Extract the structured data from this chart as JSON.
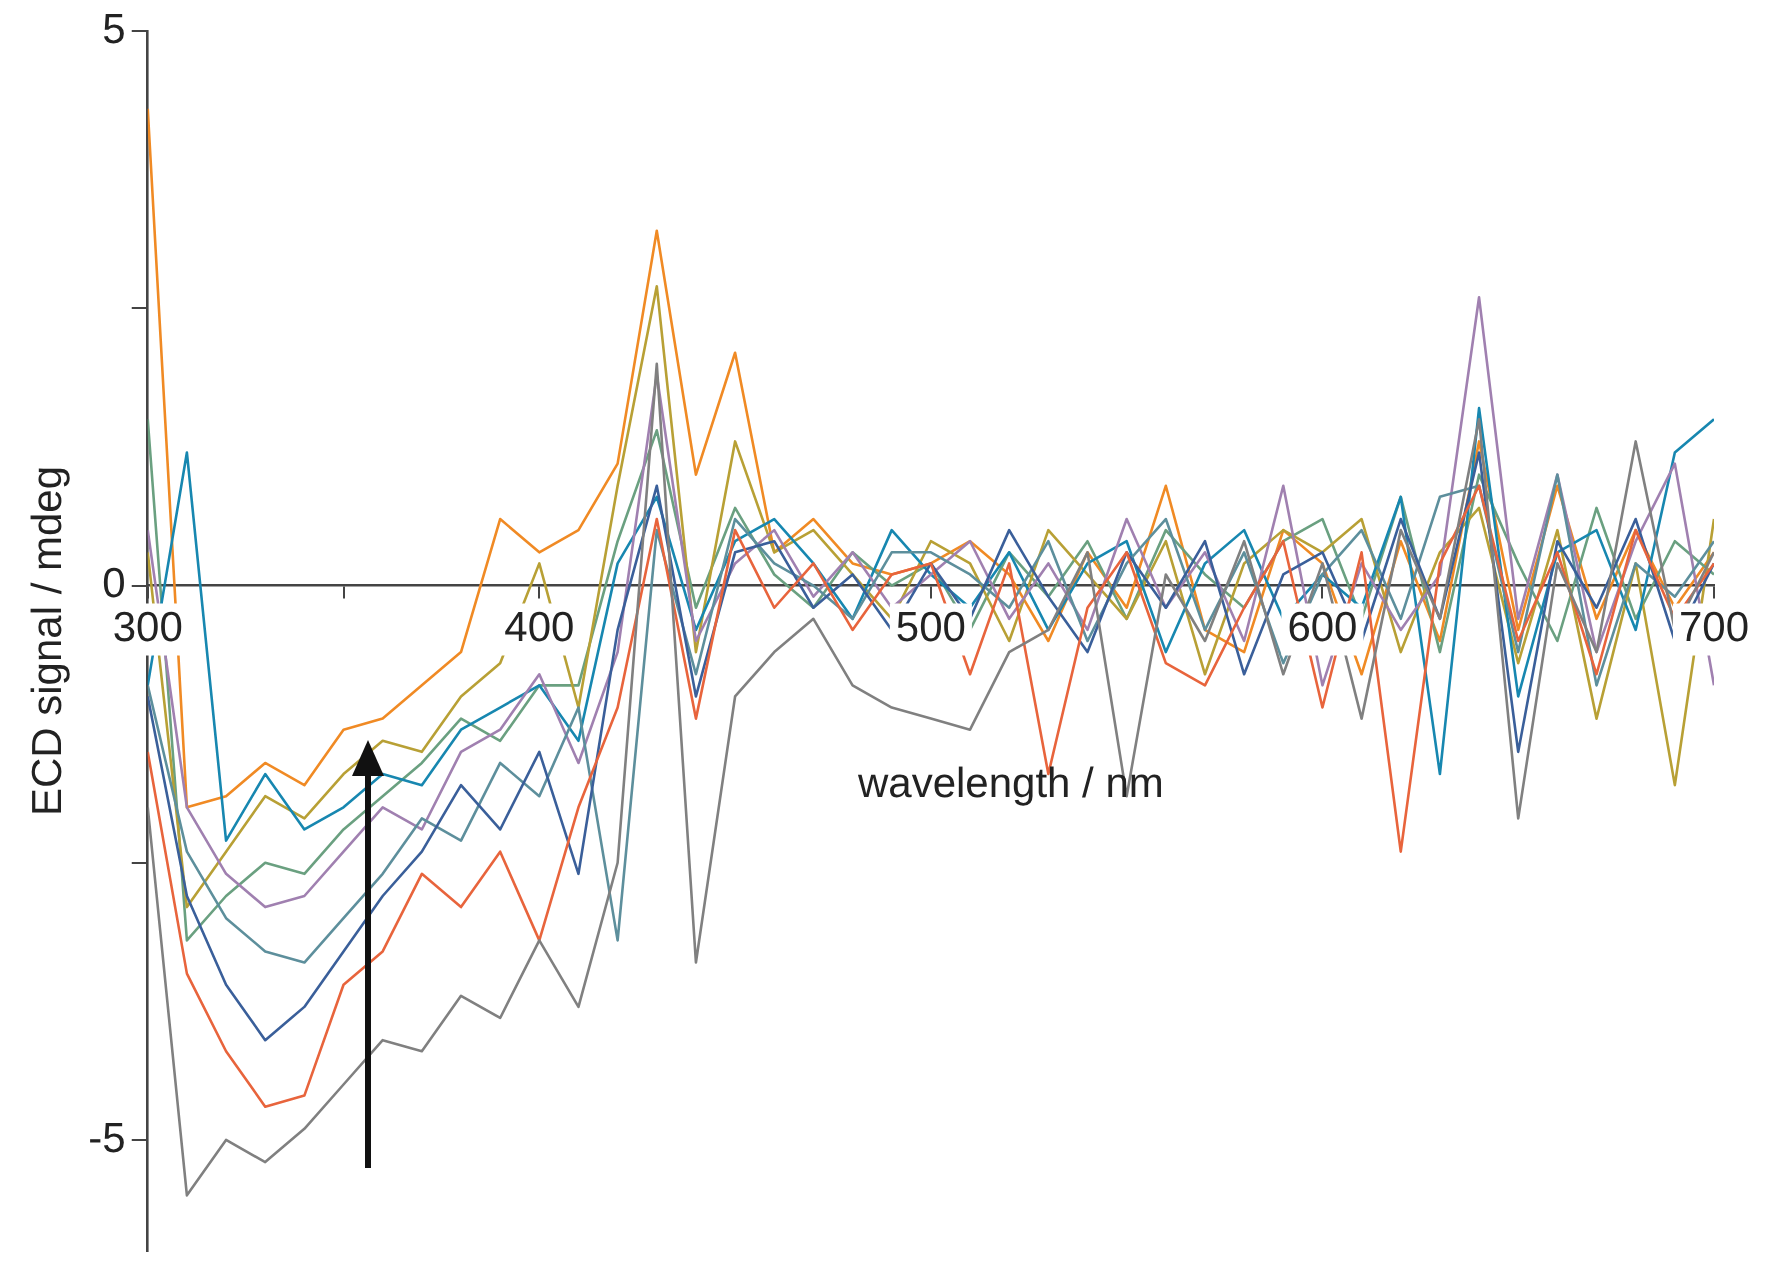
{
  "chart_data": {
    "type": "line",
    "xlabel": "wavelength / nm",
    "ylabel": "ECD signal / mdeg",
    "marker": "none",
    "line_style": "solid",
    "grid": false,
    "legend": false,
    "xlim": [
      300,
      700
    ],
    "xticks": [
      300,
      {
        "value": 350,
        "label": null
      },
      400,
      500,
      600,
      700
    ],
    "ylim": [
      -6,
      5
    ],
    "yticks": [
      -5,
      {
        "value": -2.5,
        "label": null
      },
      0,
      {
        "value": 2.5,
        "label": null
      },
      5
    ],
    "x": [
      300,
      310,
      320,
      330,
      340,
      350,
      360,
      370,
      380,
      390,
      400,
      410,
      420,
      430,
      440,
      450,
      460,
      470,
      480,
      490,
      500,
      510,
      520,
      530,
      540,
      550,
      560,
      570,
      580,
      590,
      600,
      610,
      620,
      630,
      640,
      650,
      660,
      670,
      680,
      690,
      700
    ],
    "series": [
      {
        "color": "#808080",
        "values": [
          -2.0,
          -5.5,
          -5.0,
          -5.2,
          -4.9,
          -4.5,
          -4.1,
          -4.2,
          -3.7,
          -3.9,
          -3.2,
          -3.8,
          -2.5,
          2.0,
          -3.4,
          -1.0,
          -0.6,
          -0.3,
          -0.9,
          -1.1,
          -1.2,
          -1.3,
          -0.6,
          -0.4,
          0.3,
          -1.9,
          0.1,
          -0.5,
          0.4,
          -0.8,
          0.2,
          -1.2,
          0.5,
          -0.3,
          1.5,
          -2.1,
          0.2,
          -0.6,
          1.3,
          -0.4,
          0.3
        ]
      },
      {
        "color": "#e8643c",
        "values": [
          -1.5,
          -3.5,
          -4.2,
          -4.7,
          -4.6,
          -3.6,
          -3.3,
          -2.6,
          -2.9,
          -2.4,
          -3.2,
          -2.0,
          -1.1,
          0.6,
          -1.2,
          0.5,
          -0.2,
          0.2,
          -0.4,
          0.1,
          0.2,
          -0.8,
          0.2,
          -1.7,
          -0.2,
          0.3,
          -0.7,
          -0.9,
          -0.2,
          0.4,
          -1.1,
          0.3,
          -2.4,
          0.2,
          0.9,
          -0.5,
          0.3,
          -0.8,
          0.5,
          -0.3,
          0.2
        ]
      },
      {
        "color": "#3a5f9a",
        "values": [
          -1.0,
          -2.8,
          -3.6,
          -4.1,
          -3.8,
          -3.3,
          -2.8,
          -2.4,
          -1.8,
          -2.2,
          -1.5,
          -2.6,
          -0.4,
          0.9,
          -1.0,
          0.3,
          0.4,
          -0.2,
          0.1,
          -0.4,
          0.2,
          -0.3,
          0.5,
          -0.1,
          -0.6,
          0.3,
          -0.2,
          0.4,
          -0.8,
          0.1,
          0.3,
          -0.5,
          0.6,
          -0.3,
          1.2,
          -1.5,
          0.4,
          -0.2,
          0.6,
          -0.5,
          0.2
        ]
      },
      {
        "color": "#5d8f9c",
        "values": [
          -0.9,
          -2.4,
          -3.0,
          -3.3,
          -3.4,
          -3.0,
          -2.6,
          -2.1,
          -2.3,
          -1.6,
          -1.9,
          -1.1,
          -3.2,
          0.5,
          -0.8,
          0.6,
          0.2,
          0.0,
          -0.3,
          0.3,
          0.3,
          0.1,
          -0.2,
          0.4,
          -0.5,
          0.2,
          0.6,
          -0.4,
          0.3,
          -0.7,
          0.1,
          0.5,
          -0.3,
          0.8,
          0.9,
          -0.6,
          1.0,
          -0.9,
          0.2,
          -0.1,
          0.4
        ]
      },
      {
        "color": "#a080b0",
        "values": [
          0.5,
          -2.0,
          -2.6,
          -2.9,
          -2.8,
          -2.4,
          -2.0,
          -2.2,
          -1.5,
          -1.3,
          -0.8,
          -1.6,
          -0.6,
          1.9,
          -0.5,
          0.2,
          0.5,
          -0.1,
          0.3,
          -0.2,
          0.1,
          0.4,
          -0.3,
          0.2,
          -0.4,
          0.6,
          -0.2,
          0.3,
          -0.5,
          0.9,
          -0.9,
          0.2,
          -0.4,
          0.1,
          2.6,
          -0.3,
          1.0,
          -0.6,
          0.4,
          1.1,
          -0.9
        ]
      },
      {
        "color": "#1787b0",
        "values": [
          -0.9,
          1.2,
          -2.3,
          -1.7,
          -2.2,
          -2.0,
          -1.7,
          -1.8,
          -1.3,
          -1.1,
          -0.9,
          -1.4,
          0.2,
          0.8,
          -0.4,
          0.4,
          0.6,
          0.2,
          -0.3,
          0.5,
          0.1,
          -0.2,
          0.3,
          -0.4,
          0.2,
          0.4,
          -0.6,
          0.2,
          0.5,
          -0.3,
          0.1,
          -0.2,
          0.8,
          -1.7,
          1.6,
          -1.0,
          0.3,
          0.5,
          -0.4,
          1.2,
          1.5
        ]
      },
      {
        "color": "#b8a035",
        "values": [
          0.3,
          -2.9,
          -2.4,
          -1.9,
          -2.1,
          -1.7,
          -1.4,
          -1.5,
          -1.0,
          -0.7,
          0.2,
          -1.1,
          0.9,
          2.7,
          -0.6,
          1.3,
          0.3,
          0.5,
          0.1,
          -0.3,
          0.4,
          0.2,
          -0.5,
          0.5,
          0.1,
          -0.3,
          0.4,
          -0.8,
          0.2,
          0.5,
          0.3,
          0.6,
          -0.6,
          0.3,
          0.7,
          -0.7,
          0.5,
          -1.2,
          0.2,
          -1.8,
          0.6
        ]
      },
      {
        "color": "#6aa080",
        "values": [
          1.5,
          -3.2,
          -2.8,
          -2.5,
          -2.6,
          -2.2,
          -1.9,
          -1.6,
          -1.2,
          -1.4,
          -0.9,
          -0.9,
          0.4,
          1.4,
          -0.2,
          0.7,
          0.1,
          -0.2,
          0.3,
          0.0,
          0.2,
          -0.4,
          0.3,
          -0.1,
          0.4,
          -0.3,
          0.5,
          0.1,
          -0.2,
          0.4,
          0.6,
          -0.3,
          0.8,
          -0.6,
          1.0,
          0.2,
          -0.5,
          0.7,
          -0.3,
          0.4,
          0.1
        ]
      },
      {
        "color": "#f08a24",
        "values": [
          4.3,
          -2.0,
          -1.9,
          -1.6,
          -1.8,
          -1.3,
          -1.2,
          -0.9,
          -0.6,
          0.6,
          0.3,
          0.5,
          1.1,
          3.2,
          1.0,
          2.1,
          0.3,
          0.6,
          0.2,
          0.1,
          0.2,
          0.4,
          0.1,
          -0.5,
          0.3,
          -0.2,
          0.9,
          -0.4,
          -0.6,
          0.5,
          0.2,
          -0.8,
          0.4,
          -0.5,
          1.3,
          -0.4,
          0.9,
          -0.3,
          0.5,
          -0.2,
          0.3
        ]
      }
    ]
  }
}
